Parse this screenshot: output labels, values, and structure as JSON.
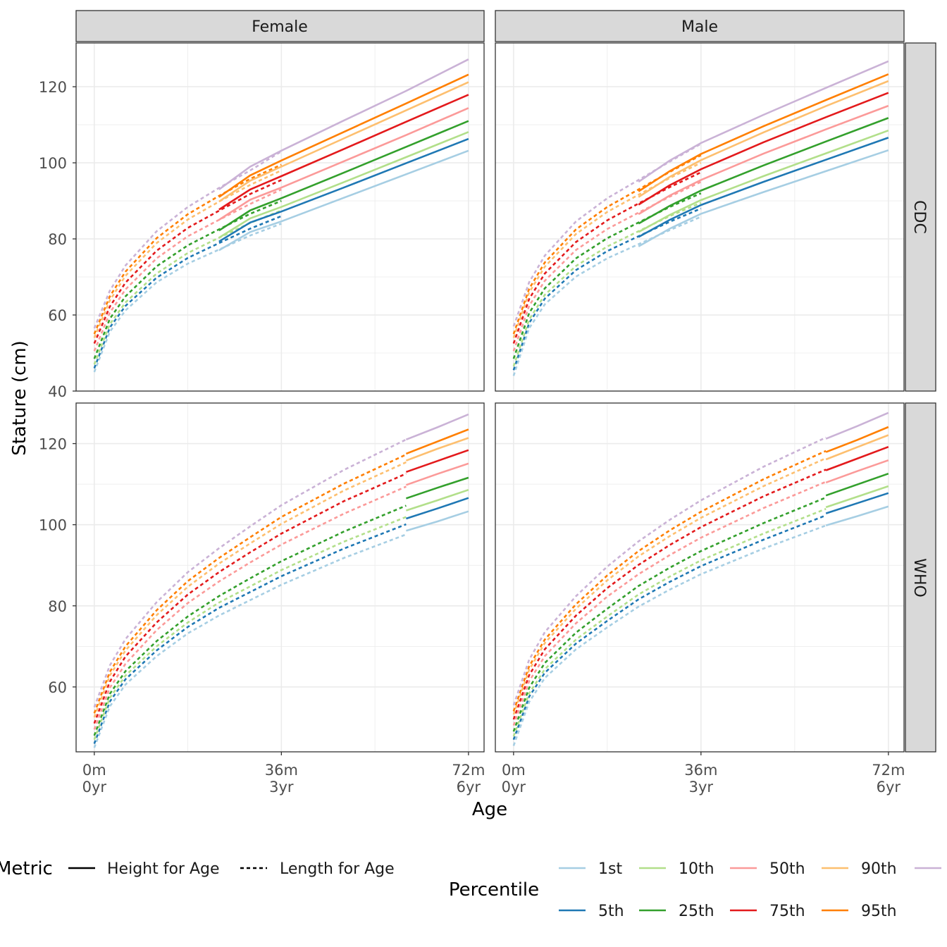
{
  "chart_data": {
    "type": "line",
    "xlabel": "Age",
    "ylabel": "Stature (cm)",
    "x_unit": "months",
    "xlim": [
      -3.5,
      75
    ],
    "ylim_top_row": [
      40,
      131.5
    ],
    "ylim_bottom_row": [
      44,
      130
    ],
    "x_ticks": [
      {
        "value": 0,
        "line1": "0m",
        "line2": "0yr"
      },
      {
        "value": 36,
        "line1": "36m",
        "line2": "3yr"
      },
      {
        "value": 72,
        "line1": "72m",
        "line2": "6yr"
      }
    ],
    "y_ticks_top_row": [
      40,
      60,
      80,
      100,
      120
    ],
    "y_ticks_bottom_row": [
      60,
      80,
      100,
      120
    ],
    "grid": true,
    "col_strips": [
      "Female",
      "Male"
    ],
    "row_strips": [
      "CDC",
      "WHO"
    ],
    "legend": {
      "position": "bottom",
      "metric_title": "Metric",
      "metric_items": [
        {
          "label": "Height for Age",
          "linetype": "solid"
        },
        {
          "label": "Length for Age",
          "linetype": "dashed"
        }
      ],
      "percentile_title": "Percentile",
      "percentile_items": [
        {
          "label": "1st",
          "color": "#a6cee3"
        },
        {
          "label": "5th",
          "color": "#1f78b4"
        },
        {
          "label": "10th",
          "color": "#b2df8a"
        },
        {
          "label": "25th",
          "color": "#33a02c"
        },
        {
          "label": "50th",
          "color": "#fb9a99"
        },
        {
          "label": "75th",
          "color": "#e31a1c"
        },
        {
          "label": "90th",
          "color": "#fdbf6f"
        },
        {
          "label": "95th",
          "color": "#ff7f00"
        },
        {
          "label": "",
          "color": "#cab2d6"
        }
      ]
    },
    "percentile_colors": [
      "#a6cee3",
      "#1f78b4",
      "#b2df8a",
      "#33a02c",
      "#fb9a99",
      "#e31a1c",
      "#fdbf6f",
      "#ff7f00",
      "#cab2d6"
    ],
    "panels": [
      {
        "sex": "Female",
        "source": "CDC",
        "length_for_age": {
          "x": [
            0,
            3,
            6,
            12,
            18,
            24,
            30,
            36
          ],
          "series": [
            [
              45.0,
              55.6,
              61.2,
              68.6,
              73.5,
              77.2,
              80.9,
              84.0
            ],
            [
              46.0,
              56.7,
              62.4,
              69.8,
              75.0,
              78.9,
              82.7,
              86.0
            ],
            [
              47.0,
              57.6,
              63.3,
              70.9,
              76.3,
              80.3,
              84.2,
              87.5
            ],
            [
              48.5,
              59.0,
              64.9,
              72.8,
              78.3,
              82.5,
              86.6,
              90.0
            ],
            [
              50.5,
              60.6,
              66.7,
              74.9,
              80.7,
              85.0,
              89.2,
              93.0
            ],
            [
              52.5,
              62.2,
              68.5,
              76.9,
              82.9,
              87.4,
              91.8,
              95.5
            ],
            [
              54.0,
              63.8,
              70.3,
              78.9,
              85.1,
              89.8,
              94.2,
              98.0
            ],
            [
              55.0,
              64.9,
              71.4,
              80.2,
              86.5,
              91.3,
              95.8,
              99.5
            ],
            [
              56.5,
              66.4,
              73.0,
              82.0,
              88.4,
              93.4,
              98.0,
              103.0
            ]
          ]
        },
        "height_for_age": {
          "x": [
            24,
            30,
            36,
            48,
            60,
            72
          ],
          "series": [
            [
              77.0,
              81.8,
              84.6,
              90.8,
              97.0,
              103.2
            ],
            [
              79.3,
              84.3,
              87.2,
              93.5,
              99.9,
              106.3
            ],
            [
              80.3,
              85.4,
              88.4,
              94.9,
              101.5,
              108.1
            ],
            [
              82.2,
              87.5,
              90.7,
              97.4,
              104.2,
              111.0
            ],
            [
              85.0,
              90.3,
              93.5,
              100.4,
              107.3,
              114.4
            ],
            [
              87.7,
              93.0,
              96.5,
              103.6,
              110.8,
              117.9
            ],
            [
              89.8,
              95.3,
              99.0,
              106.4,
              113.8,
              121.2
            ],
            [
              91.0,
              96.7,
              100.6,
              108.1,
              115.6,
              123.2
            ],
            [
              93.0,
              99.0,
              103.2,
              111.1,
              118.9,
              127.2
            ]
          ]
        }
      },
      {
        "sex": "Male",
        "source": "CDC",
        "length_for_age": {
          "x": [
            0,
            3,
            6,
            12,
            18,
            24,
            30,
            36
          ],
          "series": [
            [
              44.0,
              56.5,
              62.8,
              70.1,
              74.9,
              78.6,
              82.3,
              85.8
            ],
            [
              45.5,
              57.9,
              64.3,
              71.8,
              76.8,
              80.7,
              84.5,
              88.0
            ],
            [
              46.5,
              58.8,
              65.3,
              72.9,
              78.0,
              82.0,
              86.0,
              89.5
            ],
            [
              48.5,
              60.5,
              67.0,
              74.9,
              80.2,
              84.3,
              88.4,
              92.0
            ],
            [
              50.5,
              62.4,
              69.0,
              77.1,
              82.6,
              86.9,
              91.1,
              95.0
            ],
            [
              52.5,
              64.2,
              70.9,
              79.2,
              84.9,
              89.3,
              93.6,
              97.5
            ],
            [
              54.0,
              65.9,
              72.7,
              81.3,
              87.1,
              91.6,
              96.0,
              100.0
            ],
            [
              55.0,
              66.9,
              73.8,
              82.5,
              88.4,
              93.0,
              97.6,
              102.0
            ],
            [
              57.0,
              68.6,
              75.6,
              84.6,
              90.7,
              95.5,
              100.3,
              105.0
            ]
          ]
        },
        "height_for_age": {
          "x": [
            24,
            30,
            36,
            48,
            60,
            72
          ],
          "series": [
            [
              78.0,
              82.7,
              86.6,
              92.3,
              97.8,
              103.3
            ],
            [
              80.5,
              85.0,
              88.9,
              95.0,
              100.8,
              106.6
            ],
            [
              81.8,
              86.3,
              90.2,
              96.5,
              102.5,
              108.5
            ],
            [
              84.0,
              88.7,
              92.7,
              99.3,
              105.6,
              111.8
            ],
            [
              86.5,
              91.4,
              95.5,
              102.4,
              108.8,
              115.0
            ],
            [
              89.0,
              94.1,
              98.3,
              105.4,
              112.0,
              118.4
            ],
            [
              91.0,
              96.3,
              100.7,
              108.0,
              114.9,
              121.5
            ],
            [
              92.5,
              97.8,
              102.3,
              109.6,
              116.5,
              123.3
            ],
            [
              95.0,
              100.6,
              105.2,
              112.6,
              119.7,
              126.7
            ]
          ]
        }
      },
      {
        "sex": "Female",
        "source": "WHO",
        "length_for_age": {
          "x": [
            0,
            3,
            6,
            12,
            18,
            24,
            30,
            36,
            48,
            60
          ],
          "series": [
            [
              45.0,
              55.2,
              60.6,
              67.6,
              73.2,
              77.6,
              81.4,
              85.2,
              91.8,
              97.6
            ],
            [
              46.0,
              56.4,
              61.9,
              69.0,
              74.8,
              79.5,
              83.4,
              87.3,
              94.1,
              100.1
            ],
            [
              47.0,
              57.3,
              62.8,
              70.0,
              75.9,
              80.8,
              84.8,
              88.8,
              95.8,
              101.9
            ],
            [
              48.0,
              58.3,
              63.9,
              71.3,
              77.4,
              82.4,
              86.8,
              91.0,
              98.3,
              104.7
            ],
            [
              49.5,
              59.8,
              65.7,
              74.0,
              80.7,
              86.0,
              90.7,
              95.1,
              102.7,
              109.4
            ],
            [
              51.0,
              61.3,
              67.5,
              75.9,
              82.8,
              88.3,
              93.2,
              97.8,
              105.8,
              112.6
            ],
            [
              52.5,
              62.8,
              69.0,
              77.7,
              84.7,
              90.4,
              95.4,
              100.2,
              108.4,
              115.4
            ],
            [
              53.5,
              63.7,
              70.0,
              78.9,
              86.1,
              91.8,
              96.9,
              101.9,
              110.1,
              117.3
            ],
            [
              55.0,
              65.3,
              71.8,
              80.9,
              88.3,
              94.2,
              99.6,
              104.8,
              113.5,
              121.0
            ]
          ]
        },
        "height_for_age": {
          "x": [
            60,
            66,
            72
          ],
          "series": [
            [
              98.5,
              100.8,
              103.3
            ],
            [
              101.5,
              104.0,
              106.6
            ],
            [
              103.5,
              106.0,
              108.6
            ],
            [
              106.5,
              109.1,
              111.6
            ],
            [
              109.8,
              112.5,
              115.1
            ],
            [
              113.0,
              115.7,
              118.4
            ],
            [
              115.8,
              118.7,
              121.4
            ],
            [
              117.5,
              120.5,
              123.5
            ],
            [
              121.0,
              124.0,
              127.2
            ]
          ]
        }
      },
      {
        "sex": "Male",
        "source": "WHO",
        "length_for_age": {
          "x": [
            0,
            3,
            6,
            12,
            18,
            24,
            30,
            36,
            48,
            60
          ],
          "series": [
            [
              45.5,
              56.3,
              62.2,
              69.3,
              74.7,
              79.8,
              84.0,
              87.8,
              94.1,
              99.8
            ],
            [
              47.0,
              57.6,
              63.5,
              70.7,
              76.3,
              81.6,
              85.9,
              89.8,
              96.3,
              102.3
            ],
            [
              47.8,
              58.4,
              64.4,
              71.7,
              77.4,
              82.8,
              87.2,
              91.2,
              97.8,
              103.9
            ],
            [
              49.0,
              59.8,
              65.9,
              73.4,
              79.3,
              84.9,
              89.4,
              93.5,
              100.4,
              106.7
            ],
            [
              50.5,
              61.4,
              67.6,
              75.7,
              82.3,
              87.8,
              92.5,
              96.8,
              104.1,
              110.6
            ],
            [
              52.0,
              62.9,
              69.3,
              77.6,
              84.4,
              90.1,
              95.0,
              99.4,
              107.0,
              113.6
            ],
            [
              53.2,
              64.2,
              70.8,
              79.3,
              86.3,
              92.2,
              97.2,
              101.7,
              109.5,
              116.4
            ],
            [
              54.0,
              65.1,
              71.7,
              80.4,
              87.5,
              93.5,
              98.6,
              103.2,
              111.2,
              118.2
            ],
            [
              55.5,
              66.7,
              73.5,
              82.4,
              89.7,
              95.9,
              101.2,
              106.0,
              114.3,
              121.5
            ]
          ]
        },
        "height_for_age": {
          "x": [
            60,
            66,
            72
          ],
          "series": [
            [
              99.8,
              102.1,
              104.5
            ],
            [
              102.8,
              105.3,
              107.8
            ],
            [
              104.3,
              106.9,
              109.5
            ],
            [
              107.2,
              109.9,
              112.6
            ],
            [
              110.4,
              113.2,
              115.9
            ],
            [
              113.4,
              116.3,
              119.2
            ],
            [
              116.1,
              119.1,
              122.1
            ],
            [
              117.9,
              120.9,
              124.1
            ],
            [
              121.2,
              124.3,
              127.6
            ]
          ]
        }
      }
    ]
  }
}
